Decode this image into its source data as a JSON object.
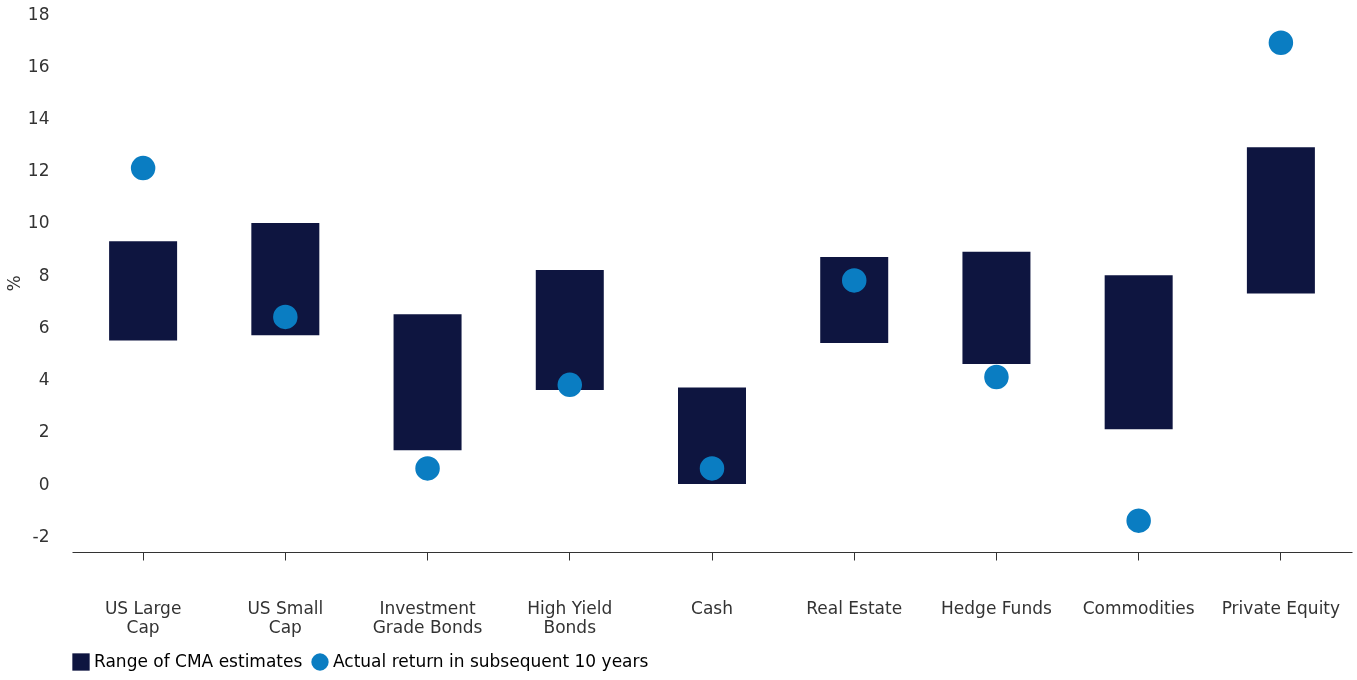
{
  "chart_data": {
    "type": "bar",
    "ylabel": "%",
    "categories": [
      "US Large\nCap",
      "US Small\nCap",
      "Investment\nGrade Bonds",
      "High Yield\nBonds",
      "Cash",
      "Real Estate",
      "Hedge Funds",
      "Commodities",
      "Private Equity"
    ],
    "series": [
      {
        "name": "Range of CMA estimates",
        "type": "bar",
        "color": "#0e1540",
        "base": [
          5.5,
          5.7,
          1.3,
          3.6,
          0,
          5.4,
          4.6,
          2.1,
          7.3
        ],
        "values": [
          3.8,
          4.3,
          5.2,
          4.6,
          3.7,
          3.3,
          4.3,
          5.9,
          5.6
        ]
      },
      {
        "name": "Actual return in subsequent 10 years",
        "type": "scatter",
        "marker": "circle",
        "color": "#0a7dc2",
        "values": [
          12.1,
          6.4,
          0.6,
          3.8,
          0.6,
          7.8,
          4.1,
          -1.4,
          16.9
        ]
      }
    ],
    "ylim": [
      -2.6,
      18
    ],
    "yticks": [
      -2,
      0,
      2,
      4,
      6,
      8,
      10,
      12,
      14,
      16,
      18
    ],
    "grid": false,
    "legend": "bottom"
  }
}
